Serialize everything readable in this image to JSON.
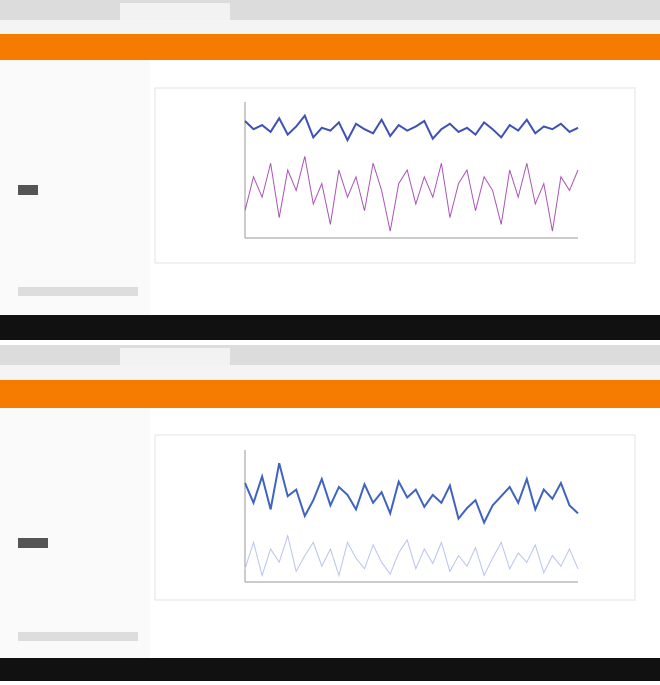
{
  "screens": [
    {
      "chart_data": {
        "type": "line",
        "ylim": [
          0,
          1
        ],
        "series": [
          {
            "color": "#3f51b5",
            "values": [
              0.86,
              0.8,
              0.83,
              0.78,
              0.88,
              0.76,
              0.82,
              0.9,
              0.74,
              0.81,
              0.79,
              0.85,
              0.72,
              0.84,
              0.8,
              0.77,
              0.87,
              0.75,
              0.83,
              0.79,
              0.82,
              0.86,
              0.73,
              0.8,
              0.84,
              0.78,
              0.81,
              0.76,
              0.85,
              0.8,
              0.74,
              0.83,
              0.79,
              0.87,
              0.77,
              0.82,
              0.8,
              0.84,
              0.78,
              0.81
            ]
          },
          {
            "color": "#a855b5",
            "values": [
              0.2,
              0.45,
              0.3,
              0.55,
              0.15,
              0.5,
              0.35,
              0.6,
              0.25,
              0.4,
              0.1,
              0.5,
              0.3,
              0.45,
              0.2,
              0.55,
              0.35,
              0.05,
              0.4,
              0.5,
              0.25,
              0.45,
              0.3,
              0.55,
              0.15,
              0.4,
              0.5,
              0.2,
              0.45,
              0.35,
              0.1,
              0.5,
              0.3,
              0.55,
              0.25,
              0.4,
              0.05,
              0.45,
              0.35,
              0.5
            ]
          }
        ]
      }
    },
    {
      "chart_data": {
        "type": "line",
        "ylim": [
          0,
          1
        ],
        "series": [
          {
            "color": "#3f63c0",
            "values": [
              0.75,
              0.6,
              0.8,
              0.55,
              0.9,
              0.65,
              0.7,
              0.5,
              0.62,
              0.78,
              0.58,
              0.72,
              0.66,
              0.55,
              0.74,
              0.6,
              0.68,
              0.52,
              0.76,
              0.64,
              0.7,
              0.57,
              0.66,
              0.6,
              0.73,
              0.48,
              0.56,
              0.62,
              0.45,
              0.58,
              0.65,
              0.72,
              0.6,
              0.78,
              0.55,
              0.7,
              0.63,
              0.75,
              0.58,
              0.52
            ]
          },
          {
            "color": "#b8c4ec",
            "values": [
              0.1,
              0.3,
              0.05,
              0.25,
              0.15,
              0.35,
              0.08,
              0.2,
              0.3,
              0.12,
              0.25,
              0.05,
              0.3,
              0.18,
              0.1,
              0.28,
              0.15,
              0.06,
              0.22,
              0.32,
              0.1,
              0.25,
              0.14,
              0.3,
              0.08,
              0.2,
              0.12,
              0.26,
              0.05,
              0.18,
              0.3,
              0.1,
              0.22,
              0.15,
              0.28,
              0.07,
              0.2,
              0.12,
              0.25,
              0.1
            ]
          }
        ]
      }
    }
  ]
}
